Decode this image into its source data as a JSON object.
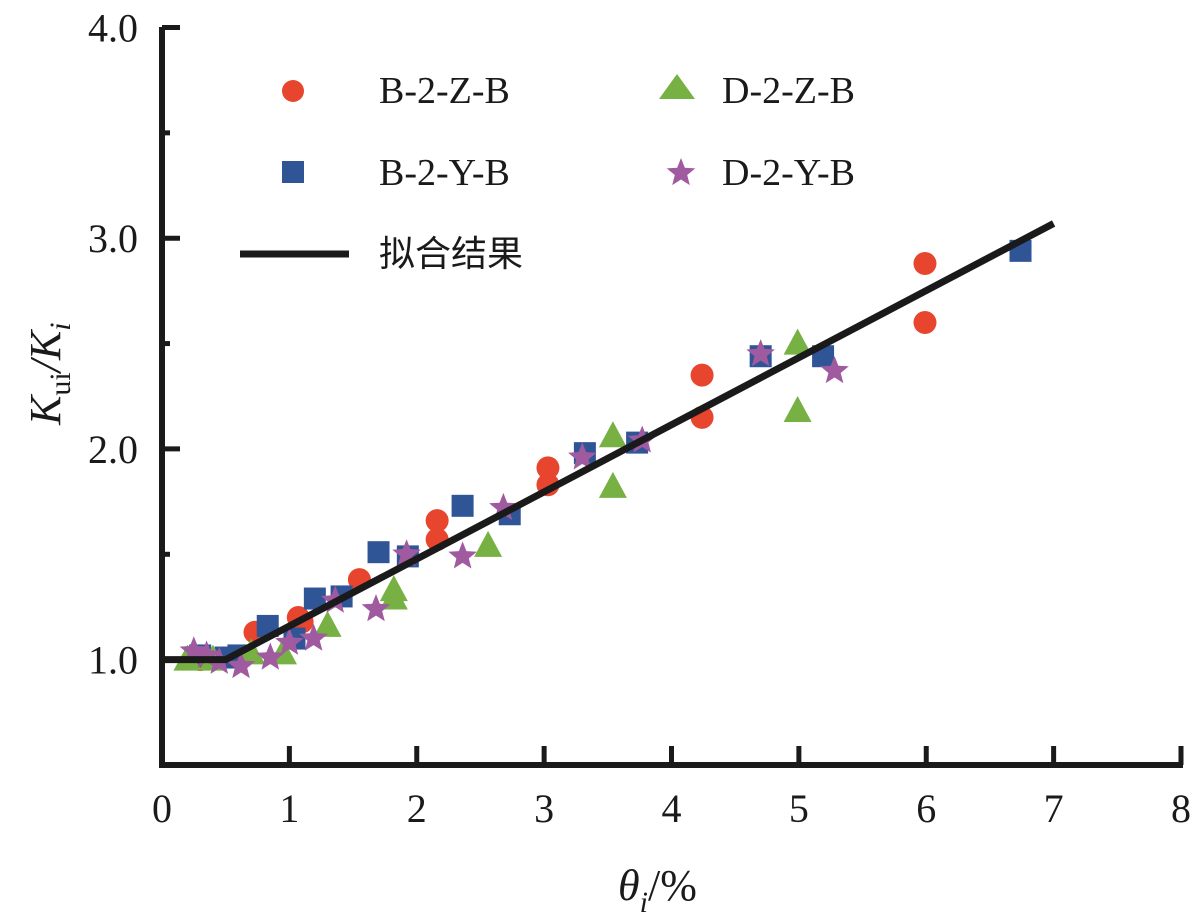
{
  "chart_data": {
    "type": "scatter",
    "title": "",
    "xlabel": {
      "main": "θ",
      "sub": "i",
      "suffix": "/%"
    },
    "ylabel": {
      "main1": "K",
      "sub1": "ui",
      "sep": "/",
      "main2": "K",
      "sub2": "i"
    },
    "xlim": [
      0,
      8
    ],
    "ylim": [
      0.5,
      4.0
    ],
    "x_ticks": [
      0,
      1,
      2,
      3,
      4,
      5,
      6,
      7,
      8
    ],
    "x_tick_labels": [
      "0",
      "1",
      "2",
      "3",
      "4",
      "5",
      "6",
      "7",
      "8"
    ],
    "y_ticks": [
      1.0,
      2.0,
      3.0,
      4.0
    ],
    "y_tick_labels": [
      "1.0",
      "2.0",
      "3.0",
      "4.0"
    ],
    "y_minor_ticks": [
      1.5,
      2.5,
      3.5
    ],
    "grid": false,
    "legend_position": "top-left",
    "series": [
      {
        "name": "B-2-Z-B",
        "marker": "circle",
        "color": "#e8452f",
        "points": [
          [
            0.3,
            1.0
          ],
          [
            0.73,
            1.13
          ],
          [
            1.07,
            1.2
          ],
          [
            1.1,
            1.18
          ],
          [
            1.55,
            1.38
          ],
          [
            2.16,
            1.66
          ],
          [
            2.16,
            1.57
          ],
          [
            3.03,
            1.91
          ],
          [
            3.03,
            1.83
          ],
          [
            4.24,
            2.35
          ],
          [
            4.24,
            2.15
          ],
          [
            5.99,
            2.88
          ],
          [
            5.99,
            2.6
          ]
        ]
      },
      {
        "name": "B-2-Y-B",
        "marker": "square",
        "color": "#2f5597",
        "points": [
          [
            0.3,
            1.02
          ],
          [
            0.5,
            1.01
          ],
          [
            0.6,
            1.02
          ],
          [
            0.83,
            1.16
          ],
          [
            1.04,
            1.1
          ],
          [
            1.2,
            1.29
          ],
          [
            1.41,
            1.3
          ],
          [
            1.7,
            1.51
          ],
          [
            1.93,
            1.49
          ],
          [
            2.36,
            1.73
          ],
          [
            2.73,
            1.69
          ],
          [
            3.32,
            1.98
          ],
          [
            3.73,
            2.03
          ],
          [
            4.7,
            2.44
          ],
          [
            5.19,
            2.44
          ],
          [
            6.74,
            2.94
          ]
        ]
      },
      {
        "name": "D-2-Z-B",
        "marker": "triangle",
        "color": "#77b043",
        "points": [
          [
            0.2,
            1.0
          ],
          [
            0.4,
            1.0
          ],
          [
            0.7,
            1.03
          ],
          [
            0.95,
            1.03
          ],
          [
            1.3,
            1.16
          ],
          [
            1.82,
            1.33
          ],
          [
            1.82,
            1.29
          ],
          [
            2.56,
            1.54
          ],
          [
            3.54,
            2.06
          ],
          [
            3.54,
            1.82
          ],
          [
            4.99,
            2.5
          ],
          [
            4.99,
            2.18
          ]
        ]
      },
      {
        "name": "D-2-Y-B",
        "marker": "star",
        "color": "#a05aa0",
        "points": [
          [
            0.25,
            1.04
          ],
          [
            0.35,
            1.02
          ],
          [
            0.45,
            0.99
          ],
          [
            0.62,
            0.97
          ],
          [
            0.85,
            1.01
          ],
          [
            1.0,
            1.08
          ],
          [
            1.19,
            1.1
          ],
          [
            1.36,
            1.28
          ],
          [
            1.68,
            1.24
          ],
          [
            1.92,
            1.5
          ],
          [
            2.36,
            1.49
          ],
          [
            2.68,
            1.72
          ],
          [
            3.3,
            1.96
          ],
          [
            3.77,
            2.04
          ],
          [
            4.7,
            2.45
          ],
          [
            5.28,
            2.37
          ]
        ]
      }
    ],
    "fit_line": {
      "name": "拟合结果",
      "color": "#1a1a1a",
      "points": [
        [
          0,
          1.0
        ],
        [
          0.5,
          1.0
        ],
        [
          7.0,
          3.07
        ]
      ]
    }
  }
}
